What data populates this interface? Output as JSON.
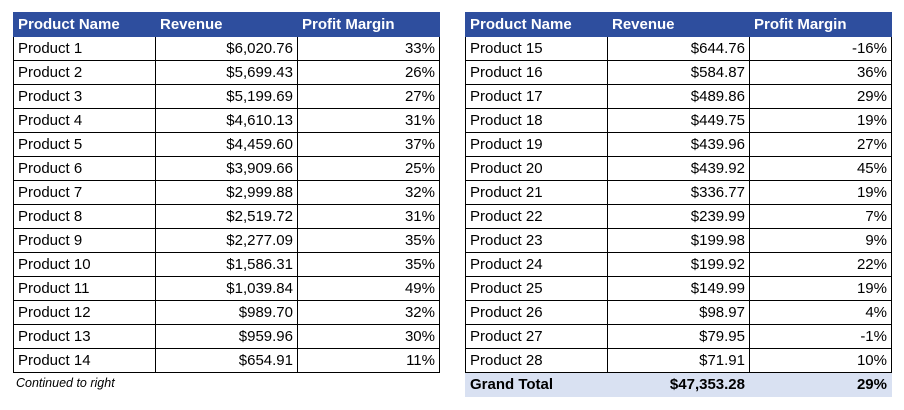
{
  "chart_data": [
    {
      "type": "table",
      "columns": [
        "Product Name",
        "Revenue",
        "Profit Margin"
      ],
      "rows": [
        [
          "Product 1",
          "$6,020.76",
          "33%"
        ],
        [
          "Product 2",
          "$5,699.43",
          "26%"
        ],
        [
          "Product 3",
          "$5,199.69",
          "27%"
        ],
        [
          "Product 4",
          "$4,610.13",
          "31%"
        ],
        [
          "Product 5",
          "$4,459.60",
          "37%"
        ],
        [
          "Product 6",
          "$3,909.66",
          "25%"
        ],
        [
          "Product 7",
          "$2,999.88",
          "32%"
        ],
        [
          "Product 8",
          "$2,519.72",
          "31%"
        ],
        [
          "Product 9",
          "$2,277.09",
          "35%"
        ],
        [
          "Product 10",
          "$1,586.31",
          "35%"
        ],
        [
          "Product 11",
          "$1,039.84",
          "49%"
        ],
        [
          "Product 12",
          "$989.70",
          "32%"
        ],
        [
          "Product 13",
          "$959.96",
          "30%"
        ],
        [
          "Product 14",
          "$654.91",
          "11%"
        ]
      ],
      "footnote": "Continued to right"
    },
    {
      "type": "table",
      "columns": [
        "Product Name",
        "Revenue",
        "Profit Margin"
      ],
      "rows": [
        [
          "Product 15",
          "$644.76",
          "-16%"
        ],
        [
          "Product 16",
          "$584.87",
          "36%"
        ],
        [
          "Product 17",
          "$489.86",
          "29%"
        ],
        [
          "Product 18",
          "$449.75",
          "19%"
        ],
        [
          "Product 19",
          "$439.96",
          "27%"
        ],
        [
          "Product 20",
          "$439.92",
          "45%"
        ],
        [
          "Product 21",
          "$336.77",
          "19%"
        ],
        [
          "Product 22",
          "$239.99",
          "7%"
        ],
        [
          "Product 23",
          "$199.98",
          "9%"
        ],
        [
          "Product 24",
          "$199.92",
          "22%"
        ],
        [
          "Product 25",
          "$149.99",
          "19%"
        ],
        [
          "Product 26",
          "$98.97",
          "4%"
        ],
        [
          "Product 27",
          "$79.95",
          "-1%"
        ],
        [
          "Product 28",
          "$71.91",
          "10%"
        ]
      ],
      "total": [
        "Grand Total",
        "$47,353.28",
        "29%"
      ]
    }
  ],
  "colors": {
    "header_bg": "#2e4e9e",
    "header_text": "#ffffff",
    "total_bg": "#d9e1f2",
    "border": "#000000"
  }
}
